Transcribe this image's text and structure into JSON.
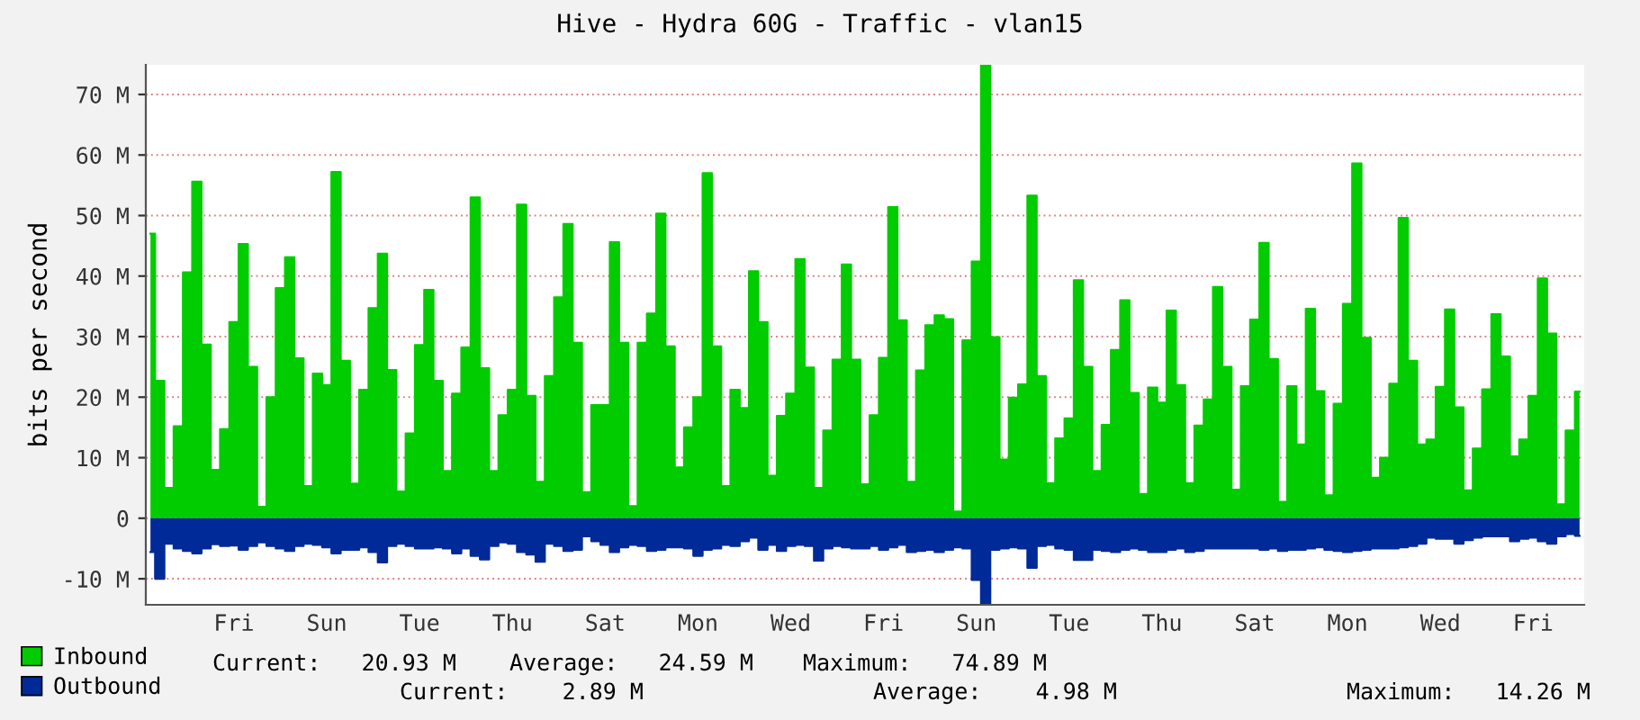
{
  "chart_data": {
    "type": "area",
    "title": "Hive - Hydra 60G - Traffic - vlan15",
    "ylabel": "bits per second",
    "categories": [
      null,
      null,
      null,
      null,
      null,
      null,
      null,
      null,
      null,
      "Fri",
      null,
      null,
      null,
      null,
      null,
      null,
      null,
      null,
      null,
      "Sun",
      null,
      null,
      null,
      null,
      null,
      null,
      null,
      null,
      null,
      "Tue",
      null,
      null,
      null,
      null,
      null,
      null,
      null,
      null,
      null,
      "Thu",
      null,
      null,
      null,
      null,
      null,
      null,
      null,
      null,
      null,
      "Sat",
      null,
      null,
      null,
      null,
      null,
      null,
      null,
      null,
      null,
      "Mon",
      null,
      null,
      null,
      null,
      null,
      null,
      null,
      null,
      null,
      "Wed",
      null,
      null,
      null,
      null,
      null,
      null,
      null,
      null,
      null,
      "Fri",
      null,
      null,
      null,
      null,
      null,
      null,
      null,
      null,
      null,
      "Sun",
      null,
      null,
      null,
      null,
      null,
      null,
      null,
      null,
      null,
      "Tue",
      null,
      null,
      null,
      null,
      null,
      null,
      null,
      null,
      null,
      "Thu",
      null,
      null,
      null,
      null,
      null,
      null,
      null,
      null,
      null,
      "Sat",
      null,
      null,
      null,
      null,
      null,
      null,
      null,
      null,
      null,
      "Mon",
      null,
      null,
      null,
      null,
      null,
      null,
      null,
      null,
      null,
      "Wed",
      null,
      null,
      null,
      null,
      null,
      null,
      null,
      null,
      null,
      "Fri",
      null,
      null,
      null,
      null,
      null
    ],
    "series": [
      {
        "name": "Inbound",
        "color": "#00cc00",
        "values": [
          47,
          22.7,
          5,
          15.2,
          40.6,
          55.6,
          28.7,
          8,
          14.7,
          32.4,
          45.3,
          25,
          1.9,
          20,
          38,
          43.1,
          26.4,
          5.3,
          23.9,
          22,
          57.2,
          26,
          5.7,
          21.2,
          34.7,
          43.7,
          24.5,
          4.4,
          14,
          28.6,
          37.7,
          22.7,
          7.8,
          20.6,
          28.2,
          53,
          24.8,
          7.8,
          17,
          21.2,
          51.8,
          20.2,
          6,
          23.5,
          36.5,
          48.6,
          29,
          4.3,
          18.7,
          18.7,
          45.6,
          29,
          2,
          29,
          33.8,
          50.3,
          28.4,
          8.4,
          15,
          20,
          57,
          28.4,
          5.3,
          21.2,
          18.2,
          40.8,
          32.4,
          7,
          16.9,
          20.6,
          42.8,
          24.9,
          5,
          14.5,
          26.2,
          41.9,
          26.2,
          5.6,
          17,
          26.5,
          51.4,
          32.7,
          6,
          24.4,
          31.9,
          33.5,
          32.9,
          1.1,
          29.4,
          42.4,
          74.9,
          29.9,
          9.7,
          19.9,
          22.1,
          53.3,
          23.5,
          5.8,
          13.2,
          16.5,
          39.3,
          25,
          7.8,
          15.4,
          27.8,
          36,
          20.7,
          4,
          21.6,
          19.1,
          34.3,
          22,
          5.8,
          15.3,
          19.6,
          38.2,
          25,
          4.7,
          21.8,
          32.8,
          45.5,
          26.3,
          2.7,
          21.8,
          12.2,
          34.6,
          21,
          3.8,
          18.9,
          35.4,
          58.6,
          29.8,
          6.7,
          10,
          22.2,
          49.6,
          26,
          12.2,
          13,
          21.7,
          34.5,
          18.3,
          4.6,
          11.5,
          21.3,
          33.7,
          26.7,
          10.2,
          13,
          20.2,
          39.6,
          30.5,
          2.3,
          14.5,
          20.9
        ]
      },
      {
        "name": "Outbound",
        "color": "#002a97",
        "values": [
          -5.6,
          -10,
          -4.2,
          -5,
          -5.4,
          -5.8,
          -5,
          -4.3,
          -4.6,
          -4.5,
          -5.2,
          -4.6,
          -4,
          -4.6,
          -5,
          -5.4,
          -4.6,
          -4.2,
          -4.4,
          -4.8,
          -5.8,
          -5.2,
          -5.2,
          -4.8,
          -5.6,
          -7.3,
          -4.6,
          -4.2,
          -4.6,
          -5,
          -5,
          -4.8,
          -5,
          -5.8,
          -5,
          -6.2,
          -6.8,
          -4.6,
          -4,
          -4.2,
          -5.6,
          -6,
          -7.2,
          -4.2,
          -4.6,
          -5.4,
          -5.2,
          -3,
          -3.8,
          -4.4,
          -5.6,
          -4.8,
          -4.4,
          -4.6,
          -5.4,
          -5.2,
          -4.8,
          -4.8,
          -5,
          -6.2,
          -5.2,
          -5,
          -4.4,
          -4.6,
          -3.8,
          -3.2,
          -5.2,
          -4.4,
          -5.4,
          -4.6,
          -4.4,
          -4.6,
          -7,
          -5,
          -4.6,
          -4.8,
          -5,
          -5,
          -4.6,
          -5.2,
          -4.8,
          -4.4,
          -5.6,
          -5.4,
          -5.2,
          -5.6,
          -5.2,
          -4.8,
          -5,
          -10.2,
          -14.3,
          -5.2,
          -5,
          -4.8,
          -5,
          -8.2,
          -4.6,
          -4.4,
          -5,
          -5.2,
          -6.9,
          -6.9,
          -5.2,
          -5.4,
          -5.6,
          -5.2,
          -5,
          -5.2,
          -5.6,
          -5.6,
          -5.2,
          -5,
          -5.6,
          -5.4,
          -5,
          -5,
          -5,
          -5,
          -5,
          -5,
          -5.2,
          -5,
          -5.4,
          -5.2,
          -5.2,
          -5,
          -4.8,
          -5.2,
          -5.4,
          -5.6,
          -5.4,
          -5.2,
          -5,
          -5,
          -5,
          -4.8,
          -4.6,
          -4.2,
          -3.2,
          -3.4,
          -3.4,
          -4.2,
          -3.6,
          -3.2,
          -3,
          -3,
          -3,
          -3.8,
          -3.4,
          -3.2,
          -3.8,
          -4.2,
          -3,
          -2.6,
          -2.9
        ]
      }
    ],
    "ylim": [
      -14.3,
      74.9
    ],
    "yticks": [
      {
        "value": -10,
        "label": "-10 M"
      },
      0,
      {
        "value": 10,
        "label": "10 M"
      },
      {
        "value": 20,
        "label": "20 M"
      },
      {
        "value": 30,
        "label": "30 M"
      },
      {
        "value": 40,
        "label": "40 M"
      },
      {
        "value": 50,
        "label": "50 M"
      },
      {
        "value": 60,
        "label": "60 M"
      },
      {
        "value": 70,
        "label": "70 M"
      }
    ],
    "grid": "y",
    "legend": "bottom left",
    "annotations": [
      "Current:   20.93 M",
      "Average:   24.59 M",
      "Maximum:   74.89 M",
      "Current:    2.89 M",
      "Average:    4.98 M",
      "Maximum:   14.26 M"
    ]
  }
}
